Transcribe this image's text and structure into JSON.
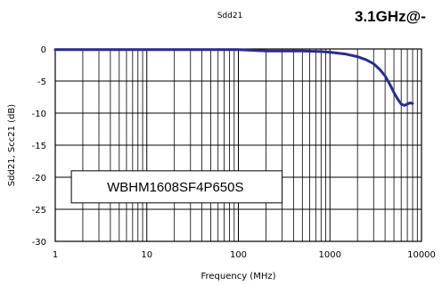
{
  "chart_data": {
    "type": "line",
    "title": "Sdd21",
    "annotation": "3.1GHz@-",
    "xlabel": "Frequency (MHz)",
    "ylabel": "Sdd21, Scc21 (dB)",
    "x_scale": "log",
    "xlim": [
      1,
      10000
    ],
    "ylim": [
      -30,
      0
    ],
    "x_ticks": [
      1,
      10,
      100,
      1000,
      10000
    ],
    "x_tick_labels": [
      "1",
      "10",
      "100",
      "1000",
      "10000"
    ],
    "y_ticks": [
      0,
      -5,
      -10,
      -15,
      -20,
      -25,
      -30
    ],
    "y_tick_labels": [
      "0",
      "-5",
      "-10",
      "-15",
      "-20",
      "-25",
      "-30"
    ],
    "grid": true,
    "legend_box": "WBHM1608SF4P650S",
    "series": [
      {
        "color": "#2b2b8f",
        "x": [
          1,
          10,
          100,
          200,
          500,
          800,
          1000,
          1500,
          2000,
          2500,
          3000,
          3500,
          4000,
          4500,
          5000,
          5500,
          6000,
          6500,
          7000,
          7500,
          8000
        ],
        "y": [
          -0.1,
          -0.1,
          -0.1,
          -0.3,
          -0.3,
          -0.4,
          -0.5,
          -0.8,
          -1.2,
          -1.7,
          -2.3,
          -3.2,
          -4.2,
          -5.5,
          -6.8,
          -7.8,
          -8.6,
          -8.8,
          -8.6,
          -8.4,
          -8.5
        ]
      }
    ]
  }
}
